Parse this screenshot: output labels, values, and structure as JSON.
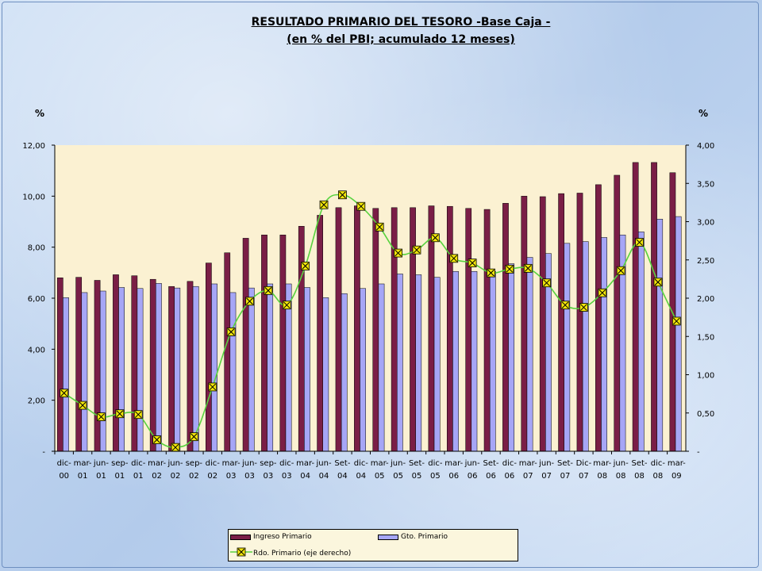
{
  "title_line1": "RESULTADO PRIMARIO DEL TESORO -Base Caja -",
  "title_line2": "(en % del PBI; acumulado 12 meses)",
  "left_axis_unit": "%",
  "right_axis_unit": "%",
  "colors": {
    "ingreso": "#7a1e46",
    "gasto": "#a6a6f6",
    "resultado_line": "#58d23f",
    "marker_fill": "#f2e60a",
    "plot_bg": "#fbf1d2"
  },
  "chart_data": {
    "type": "bar",
    "categories": [
      [
        "dic-",
        "00"
      ],
      [
        "mar-",
        "01"
      ],
      [
        "jun-",
        "01"
      ],
      [
        "sep-",
        "01"
      ],
      [
        "dic-",
        "01"
      ],
      [
        "mar-",
        "02"
      ],
      [
        "jun-",
        "02"
      ],
      [
        "sep-",
        "02"
      ],
      [
        "dic-",
        "02"
      ],
      [
        "mar-",
        "03"
      ],
      [
        "jun-",
        "03"
      ],
      [
        "sep-",
        "03"
      ],
      [
        "dic-",
        "03"
      ],
      [
        "mar-",
        "04"
      ],
      [
        "jun-",
        "04"
      ],
      [
        "Set-",
        "04"
      ],
      [
        "dic-",
        "04"
      ],
      [
        "mar-",
        "05"
      ],
      [
        "jun-",
        "05"
      ],
      [
        "Set-",
        "05"
      ],
      [
        "dic-",
        "05"
      ],
      [
        "mar-",
        "06"
      ],
      [
        "jun-",
        "06"
      ],
      [
        "Set-",
        "06"
      ],
      [
        "dic-",
        "06"
      ],
      [
        "mar-",
        "07"
      ],
      [
        "jun-",
        "07"
      ],
      [
        "Set-",
        "07"
      ],
      [
        "Dic-",
        "07"
      ],
      [
        "mar-",
        "08"
      ],
      [
        "jun-",
        "08"
      ],
      [
        "Set-",
        "08"
      ],
      [
        "dic-",
        "08"
      ],
      [
        "mar-",
        "09"
      ]
    ],
    "series": [
      {
        "name": "Ingreso Primario",
        "axis": "left",
        "values": [
          6.8,
          6.82,
          6.7,
          6.92,
          6.88,
          6.74,
          6.46,
          6.66,
          7.38,
          7.78,
          8.35,
          8.48,
          8.48,
          8.82,
          9.25,
          9.55,
          9.62,
          9.52,
          9.55,
          9.55,
          9.62,
          9.6,
          9.52,
          9.48,
          9.72,
          10.0,
          9.98,
          10.1,
          10.12,
          10.45,
          10.82,
          11.32,
          11.32,
          10.92
        ]
      },
      {
        "name": "Gto. Primario",
        "axis": "left",
        "values": [
          6.02,
          6.22,
          6.28,
          6.42,
          6.38,
          6.58,
          6.4,
          6.46,
          6.56,
          6.22,
          6.4,
          6.56,
          6.56,
          6.42,
          6.02,
          6.18,
          6.38,
          6.56,
          6.95,
          6.92,
          6.82,
          7.05,
          7.05,
          7.05,
          7.35,
          7.6,
          7.75,
          8.15,
          8.22,
          8.38,
          8.48,
          8.6,
          9.1,
          9.2
        ]
      },
      {
        "name": "Rdo. Primario (eje derecho)",
        "axis": "right",
        "type": "line",
        "values": [
          0.76,
          0.6,
          0.45,
          0.49,
          0.48,
          0.15,
          0.05,
          0.19,
          0.84,
          1.56,
          1.96,
          2.1,
          1.91,
          2.42,
          3.22,
          3.35,
          3.2,
          2.93,
          2.59,
          2.63,
          2.79,
          2.52,
          2.46,
          2.33,
          2.38,
          2.39,
          2.2,
          1.91,
          1.88,
          2.07,
          2.36,
          2.73,
          2.21,
          1.7
        ]
      }
    ],
    "left_axis": {
      "min": 0,
      "max": 12,
      "ticks": [
        "-",
        "2,00",
        "4,00",
        "6,00",
        "8,00",
        "10,00",
        "12,00"
      ]
    },
    "right_axis": {
      "min": 0,
      "max": 4,
      "ticks": [
        "-",
        "0,50",
        "1,00",
        "1,50",
        "2,00",
        "2,50",
        "3,00",
        "3,50",
        "4,00"
      ]
    },
    "legend": "bottom"
  }
}
